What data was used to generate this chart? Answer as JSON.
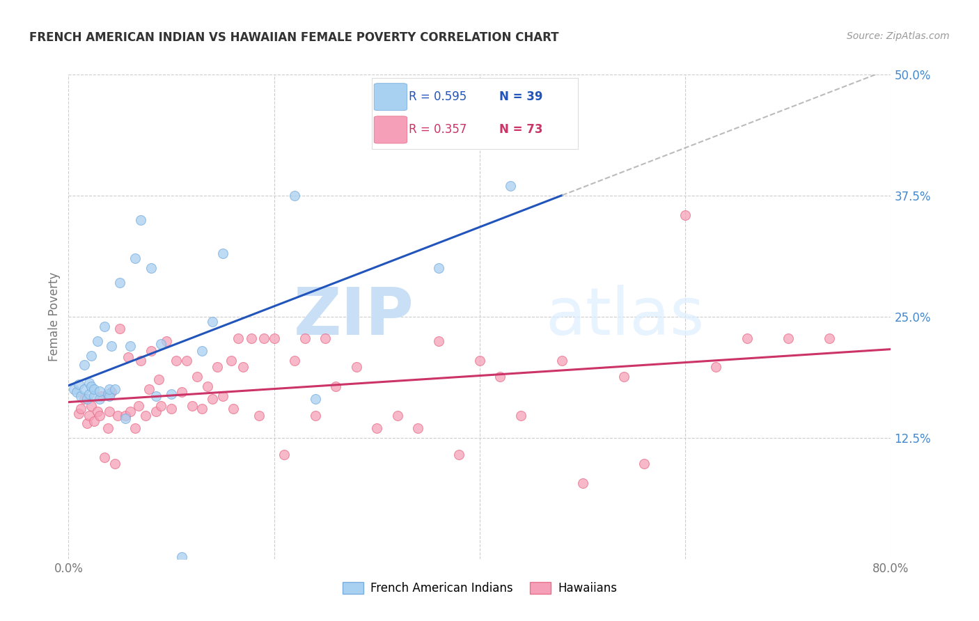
{
  "title": "FRENCH AMERICAN INDIAN VS HAWAIIAN FEMALE POVERTY CORRELATION CHART",
  "source": "Source: ZipAtlas.com",
  "ylabel": "Female Poverty",
  "xlim": [
    0.0,
    0.8
  ],
  "ylim": [
    0.0,
    0.5
  ],
  "ytick_values": [
    0.125,
    0.25,
    0.375,
    0.5
  ],
  "ytick_labels": [
    "12.5%",
    "25.0%",
    "37.5%",
    "50.0%"
  ],
  "xtick_values": [
    0.0,
    0.8
  ],
  "xtick_labels": [
    "0.0%",
    "80.0%"
  ],
  "grid_color": "#cccccc",
  "background_color": "#ffffff",
  "watermark_zip": "ZIP",
  "watermark_atlas": "atlas",
  "color_blue": "#a8d0f0",
  "color_pink": "#f5a0b8",
  "edge_blue": "#7aaedf",
  "edge_pink": "#e8708a",
  "line_blue": "#2255bb",
  "line_pink": "#cc3366",
  "line_dashed": "#bbbbbb",
  "legend_r1": "R = 0.595",
  "legend_n1": "N = 39",
  "legend_r2": "R = 0.357",
  "legend_n2": "N = 73",
  "legend_color1": "#2255bb",
  "legend_color2": "#cc3366",
  "axis_label_color": "#aaaaaa",
  "tick_color": "#4488cc",
  "title_color": "#333333",
  "source_color": "#999999",
  "french_x": [
    0.005,
    0.008,
    0.01,
    0.012,
    0.015,
    0.015,
    0.018,
    0.02,
    0.02,
    0.022,
    0.022,
    0.025,
    0.025,
    0.028,
    0.03,
    0.03,
    0.035,
    0.038,
    0.04,
    0.04,
    0.042,
    0.045,
    0.05,
    0.055,
    0.06,
    0.065,
    0.07,
    0.08,
    0.085,
    0.09,
    0.1,
    0.11,
    0.13,
    0.14,
    0.15,
    0.22,
    0.24,
    0.36,
    0.43
  ],
  "french_y": [
    0.175,
    0.172,
    0.18,
    0.168,
    0.175,
    0.2,
    0.165,
    0.17,
    0.182,
    0.178,
    0.21,
    0.168,
    0.175,
    0.225,
    0.165,
    0.173,
    0.24,
    0.17,
    0.168,
    0.175,
    0.22,
    0.175,
    0.285,
    0.145,
    0.22,
    0.31,
    0.35,
    0.3,
    0.168,
    0.222,
    0.17,
    0.002,
    0.215,
    0.245,
    0.315,
    0.375,
    0.165,
    0.3,
    0.385
  ],
  "hawaiian_x": [
    0.01,
    0.012,
    0.015,
    0.018,
    0.02,
    0.022,
    0.025,
    0.028,
    0.03,
    0.032,
    0.035,
    0.038,
    0.04,
    0.042,
    0.045,
    0.048,
    0.05,
    0.055,
    0.058,
    0.06,
    0.065,
    0.068,
    0.07,
    0.075,
    0.078,
    0.08,
    0.085,
    0.088,
    0.09,
    0.095,
    0.1,
    0.105,
    0.11,
    0.115,
    0.12,
    0.125,
    0.13,
    0.135,
    0.14,
    0.145,
    0.15,
    0.158,
    0.16,
    0.165,
    0.17,
    0.178,
    0.185,
    0.19,
    0.2,
    0.21,
    0.22,
    0.23,
    0.24,
    0.25,
    0.26,
    0.28,
    0.3,
    0.32,
    0.34,
    0.36,
    0.38,
    0.4,
    0.42,
    0.44,
    0.48,
    0.5,
    0.54,
    0.56,
    0.6,
    0.63,
    0.66,
    0.7,
    0.74
  ],
  "hawaiian_y": [
    0.15,
    0.155,
    0.165,
    0.14,
    0.148,
    0.158,
    0.142,
    0.152,
    0.148,
    0.168,
    0.105,
    0.135,
    0.152,
    0.172,
    0.098,
    0.148,
    0.238,
    0.148,
    0.208,
    0.152,
    0.135,
    0.158,
    0.205,
    0.148,
    0.175,
    0.215,
    0.152,
    0.185,
    0.158,
    0.225,
    0.155,
    0.205,
    0.172,
    0.205,
    0.158,
    0.188,
    0.155,
    0.178,
    0.165,
    0.198,
    0.168,
    0.205,
    0.155,
    0.228,
    0.198,
    0.228,
    0.148,
    0.228,
    0.228,
    0.108,
    0.205,
    0.228,
    0.148,
    0.228,
    0.178,
    0.198,
    0.135,
    0.148,
    0.135,
    0.225,
    0.108,
    0.205,
    0.188,
    0.148,
    0.205,
    0.078,
    0.188,
    0.098,
    0.355,
    0.198,
    0.228,
    0.228,
    0.228
  ]
}
